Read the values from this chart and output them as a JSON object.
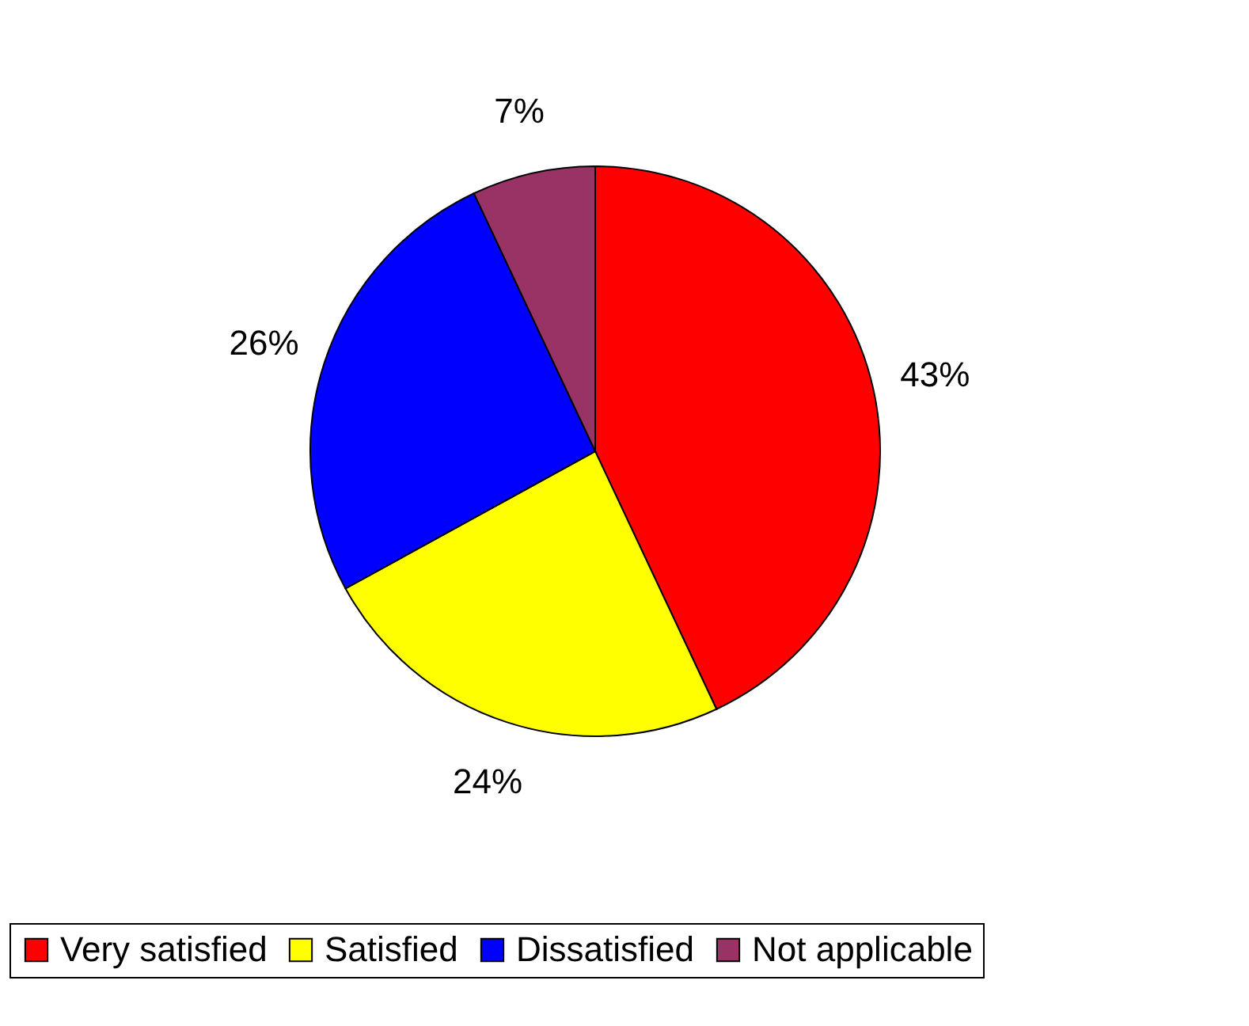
{
  "chart_data": {
    "type": "pie",
    "categories": [
      "Very satisfied",
      "Satisfied",
      "Dissatisfied",
      "Not applicable"
    ],
    "values": [
      43,
      24,
      26,
      7
    ],
    "colors": [
      "#ff0000",
      "#ffff00",
      "#0000ff",
      "#993366"
    ],
    "value_labels": [
      "43%",
      "24%",
      "26%",
      "7%"
    ],
    "legend": "bottom"
  }
}
